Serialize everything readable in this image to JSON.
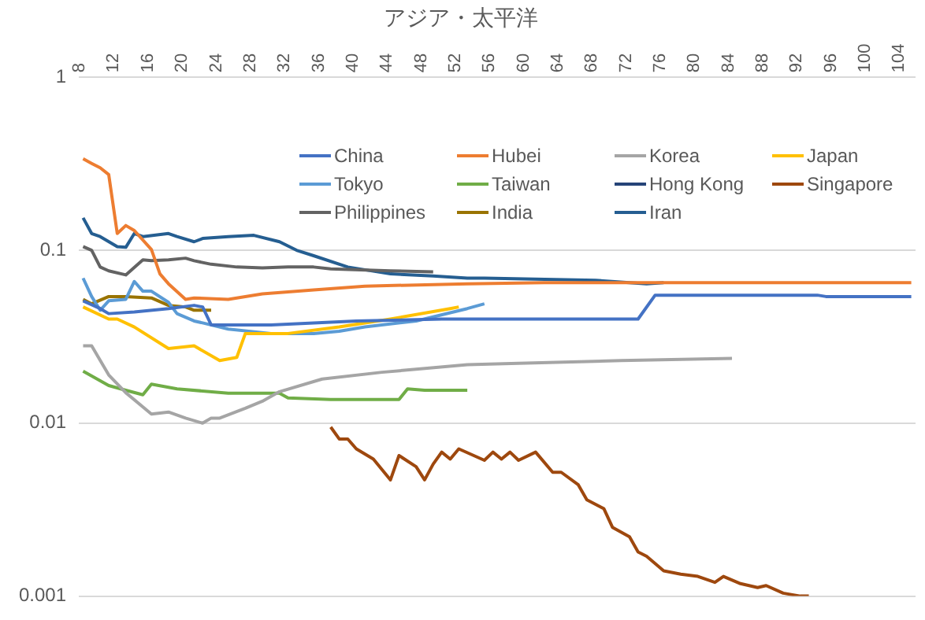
{
  "chart_data": {
    "type": "line",
    "title": "アジア・太平洋",
    "log": "y",
    "grid": "y",
    "legend": "top right",
    "xlim": [
      7.5,
      105.5
    ],
    "xticks": [
      8,
      12,
      16,
      20,
      24,
      28,
      32,
      36,
      40,
      44,
      48,
      52,
      56,
      60,
      64,
      68,
      72,
      76,
      80,
      84,
      88,
      92,
      96,
      100,
      104
    ],
    "ylim": [
      0.001,
      1
    ],
    "yticks": [
      0.001,
      0.01,
      0.1,
      1
    ],
    "series": [
      {
        "name": "China",
        "color": "#4472c4",
        "x": [
          8,
          10,
          11,
          14,
          18,
          21,
          22,
          23,
          30,
          40,
          50,
          56,
          73,
          75,
          94,
          95,
          105
        ],
        "values": [
          0.051,
          0.046,
          0.043,
          0.044,
          0.046,
          0.048,
          0.047,
          0.037,
          0.037,
          0.039,
          0.04,
          0.04,
          0.04,
          0.055,
          0.055,
          0.054,
          0.054
        ]
      },
      {
        "name": "Hubei",
        "color": "#ed7d31",
        "x": [
          8,
          9,
          10,
          11,
          12,
          13,
          14,
          16,
          17,
          18,
          20,
          21,
          25,
          29,
          35,
          41,
          53,
          62,
          105
        ],
        "values": [
          0.338,
          0.318,
          0.3,
          0.274,
          0.125,
          0.139,
          0.13,
          0.101,
          0.073,
          0.064,
          0.052,
          0.053,
          0.052,
          0.056,
          0.059,
          0.062,
          0.064,
          0.065,
          0.065
        ]
      },
      {
        "name": "Korea",
        "color": "#a5a5a5",
        "x": [
          8,
          9,
          11,
          13,
          16,
          18,
          20,
          22,
          23,
          24,
          27,
          29,
          31,
          36,
          43,
          47,
          53,
          59,
          71,
          84
        ],
        "values": [
          0.028,
          0.028,
          0.019,
          0.015,
          0.0113,
          0.0116,
          0.0107,
          0.01,
          0.0107,
          0.0107,
          0.0122,
          0.0134,
          0.0152,
          0.018,
          0.0197,
          0.0205,
          0.0218,
          0.0222,
          0.023,
          0.0237
        ]
      },
      {
        "name": "Japan",
        "color": "#ffc000",
        "x": [
          8,
          11,
          12,
          14,
          18,
          21,
          24,
          26,
          27,
          32,
          38,
          44,
          51,
          52
        ],
        "values": [
          0.047,
          0.04,
          0.04,
          0.036,
          0.027,
          0.028,
          0.023,
          0.024,
          0.033,
          0.033,
          0.036,
          0.04,
          0.046,
          0.047
        ]
      },
      {
        "name": "Tokyo",
        "color": "#5b9bd5",
        "x": [
          8,
          9,
          10,
          11,
          13,
          14,
          15,
          16,
          18,
          19,
          21,
          22,
          25,
          30,
          35,
          38,
          41,
          47,
          53,
          55
        ],
        "values": [
          0.069,
          0.054,
          0.045,
          0.051,
          0.052,
          0.066,
          0.058,
          0.058,
          0.05,
          0.043,
          0.039,
          0.038,
          0.035,
          0.033,
          0.033,
          0.034,
          0.036,
          0.039,
          0.046,
          0.049
        ]
      },
      {
        "name": "Taiwan",
        "color": "#70ad47",
        "x": [
          8,
          11,
          13,
          15,
          16,
          19,
          25,
          31,
          32,
          37,
          45,
          46,
          48,
          53
        ],
        "values": [
          0.02,
          0.0165,
          0.0155,
          0.0146,
          0.0168,
          0.0158,
          0.0149,
          0.0149,
          0.014,
          0.0137,
          0.0137,
          0.0158,
          0.0155,
          0.0155
        ]
      },
      {
        "name": "Hong Kong",
        "color": "#264478"
      },
      {
        "name": "Singapore",
        "color": "#9e480e",
        "x": [
          37,
          38,
          39,
          40,
          42,
          44,
          45,
          47,
          48,
          49,
          50,
          51,
          52,
          55,
          56,
          57,
          58,
          59,
          61,
          63,
          64,
          66,
          67,
          69,
          70,
          72,
          73,
          74,
          76,
          78,
          80,
          82,
          83,
          85,
          87,
          88,
          90,
          92,
          93
        ],
        "values": [
          0.0095,
          0.0081,
          0.0081,
          0.0071,
          0.0062,
          0.0047,
          0.0065,
          0.0056,
          0.0047,
          0.0058,
          0.0068,
          0.0062,
          0.0071,
          0.0061,
          0.0068,
          0.0062,
          0.0068,
          0.0061,
          0.0068,
          0.0052,
          0.0052,
          0.0044,
          0.0036,
          0.0032,
          0.0025,
          0.0022,
          0.0018,
          0.0017,
          0.0014,
          0.00134,
          0.0013,
          0.0012,
          0.0013,
          0.00118,
          0.00112,
          0.00115,
          0.00104,
          0.001,
          0.001
        ]
      },
      {
        "name": "Philippines",
        "color": "#636363",
        "x": [
          8,
          9,
          10,
          11,
          13,
          15,
          16,
          18,
          20,
          21,
          23,
          26,
          29,
          32,
          35,
          37,
          44,
          49
        ],
        "values": [
          0.105,
          0.1,
          0.08,
          0.076,
          0.072,
          0.088,
          0.087,
          0.088,
          0.09,
          0.087,
          0.083,
          0.08,
          0.079,
          0.08,
          0.08,
          0.078,
          0.076,
          0.075
        ]
      },
      {
        "name": "India",
        "color": "#997300",
        "x": [
          8,
          9,
          11,
          13,
          16,
          18,
          20,
          21,
          23
        ],
        "values": [
          0.052,
          0.049,
          0.054,
          0.054,
          0.053,
          0.048,
          0.047,
          0.045,
          0.045
        ]
      },
      {
        "name": "Iran",
        "color": "#255e91",
        "x": [
          8,
          9,
          10,
          12,
          13,
          14,
          15,
          18,
          19,
          21,
          22,
          25,
          28,
          31,
          33,
          35,
          39,
          44,
          49,
          53,
          55,
          68,
          74,
          76
        ],
        "values": [
          0.154,
          0.125,
          0.12,
          0.105,
          0.104,
          0.125,
          0.12,
          0.125,
          0.12,
          0.112,
          0.117,
          0.12,
          0.122,
          0.112,
          0.1,
          0.093,
          0.08,
          0.073,
          0.071,
          0.069,
          0.069,
          0.067,
          0.064,
          0.065
        ]
      }
    ]
  }
}
